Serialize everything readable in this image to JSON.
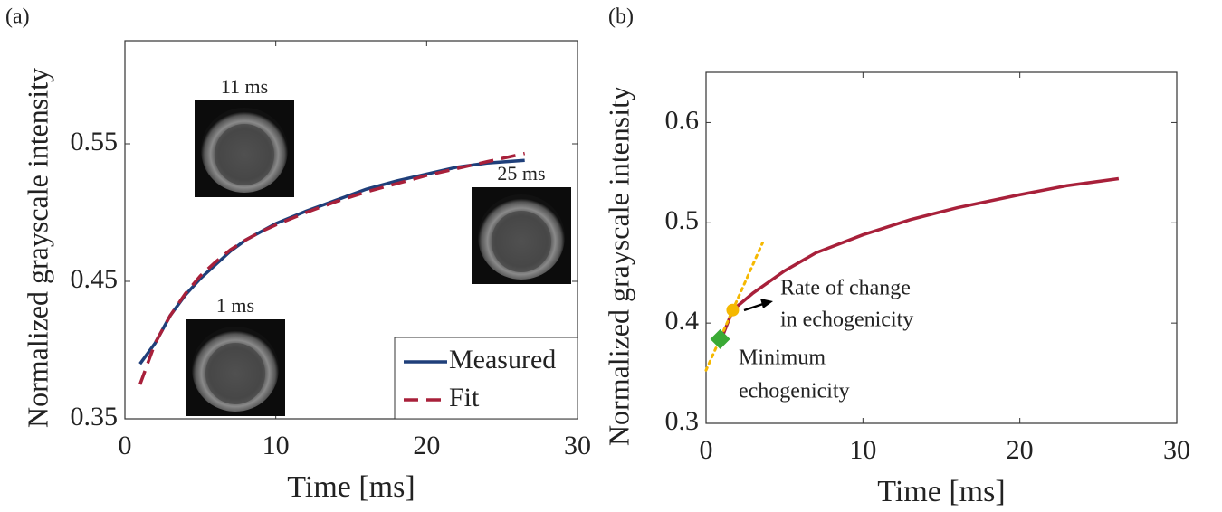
{
  "chart_data": [
    {
      "type": "line",
      "panel_label": "(a)",
      "xlabel": "Time [ms]",
      "ylabel": "Normalized grayscale intensity",
      "xlim": [
        0,
        30
      ],
      "xticks": [
        0,
        10,
        20,
        30
      ],
      "ylim": [
        0.35,
        0.625
      ],
      "yticks": [
        0.35,
        0.45,
        0.55
      ],
      "series": [
        {
          "name": "Measured",
          "color": "#1f3f7a",
          "style": "solid",
          "x": [
            1,
            2,
            3,
            4,
            5,
            6,
            7,
            8,
            9,
            10,
            12,
            14,
            16,
            18,
            20,
            22,
            24,
            26.5
          ],
          "values": [
            0.39,
            0.405,
            0.425,
            0.44,
            0.452,
            0.462,
            0.472,
            0.48,
            0.486,
            0.492,
            0.501,
            0.509,
            0.517,
            0.523,
            0.528,
            0.533,
            0.536,
            0.538
          ]
        },
        {
          "name": "Fit",
          "color": "#a8203a",
          "style": "dashed",
          "x": [
            1,
            2,
            3,
            4,
            5,
            6,
            7,
            8,
            9,
            10,
            12,
            14,
            16,
            18,
            20,
            22,
            24,
            26.5
          ],
          "values": [
            0.375,
            0.405,
            0.425,
            0.441,
            0.454,
            0.464,
            0.473,
            0.48,
            0.486,
            0.491,
            0.5,
            0.508,
            0.515,
            0.521,
            0.527,
            0.532,
            0.537,
            0.543
          ]
        }
      ],
      "legend": "lower right",
      "insets": [
        {
          "label": "11 ms"
        },
        {
          "label": "25 ms"
        },
        {
          "label": "1 ms"
        }
      ]
    },
    {
      "type": "line",
      "panel_label": "(b)",
      "xlabel": "Time [ms]",
      "ylabel": "Normalized grayscale intensity",
      "xlim": [
        0,
        30
      ],
      "xticks": [
        0,
        10,
        20,
        30
      ],
      "ylim": [
        0.3,
        0.65
      ],
      "yticks": [
        0.3,
        0.4,
        0.5,
        0.6
      ],
      "series": [
        {
          "color": "#a8203a",
          "style": "solid",
          "x": [
            1,
            1.7,
            3,
            5,
            7,
            10,
            13,
            16,
            20,
            23,
            26.3
          ],
          "values": [
            0.385,
            0.413,
            0.43,
            0.452,
            0.47,
            0.488,
            0.503,
            0.515,
            0.528,
            0.537,
            0.544
          ]
        },
        {
          "color": "#f5b800",
          "style": "dotted",
          "x": [
            0,
            3.6
          ],
          "values": [
            0.353,
            0.48
          ]
        }
      ],
      "markers": [
        {
          "x": 0.9,
          "value": 0.384,
          "color": "#3aaa35",
          "shape": "diamond"
        },
        {
          "x": 1.7,
          "value": 0.413,
          "color": "#f5b800",
          "shape": "circle"
        }
      ],
      "annotations": [
        "Rate of change",
        "in echogenicity",
        "Minimum",
        "echogenicity"
      ]
    }
  ]
}
